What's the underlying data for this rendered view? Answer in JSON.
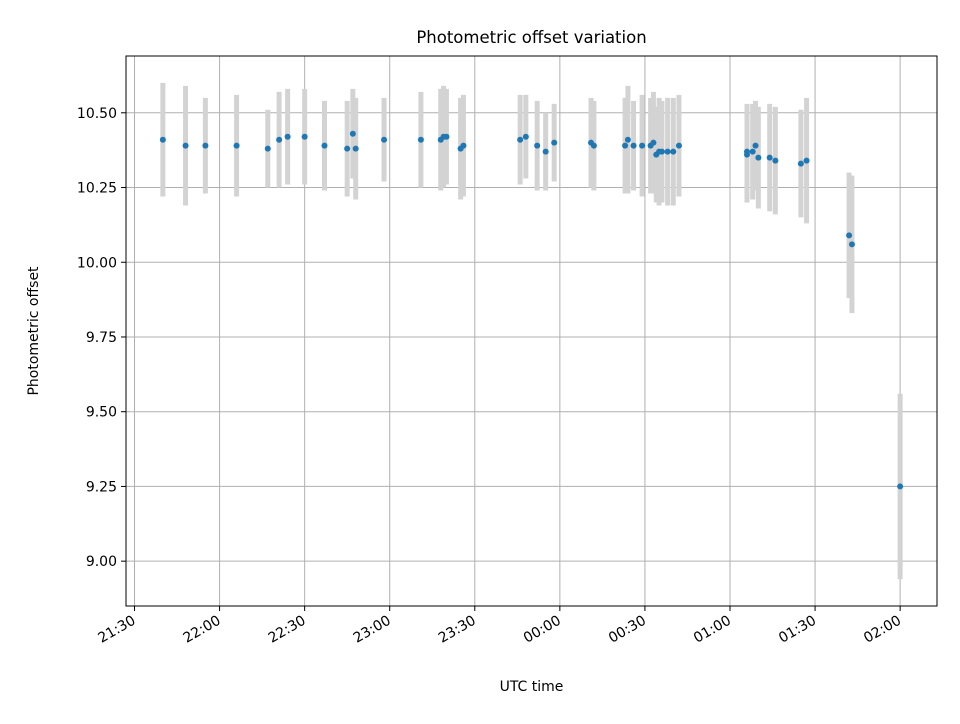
{
  "chart_data": {
    "type": "scatter",
    "title": "Photometric offset variation",
    "xlabel": "UTC time",
    "ylabel": "Photometric offset",
    "xlim": [
      "21:27",
      "02:13"
    ],
    "ylim": [
      8.85,
      10.69
    ],
    "grid": true,
    "legend": "none",
    "x_ticks": [
      "21:30",
      "22:00",
      "22:30",
      "23:00",
      "23:30",
      "00:00",
      "00:30",
      "01:00",
      "01:30",
      "02:00"
    ],
    "y_ticks": [
      "9.00",
      "9.25",
      "9.50",
      "9.75",
      "10.00",
      "10.25",
      "10.50"
    ],
    "colors": {
      "point": "#1f77b4",
      "errorbar": "#d3d3d3",
      "grid": "#b0b0b0"
    },
    "series": [
      {
        "x": [
          "21:40",
          "21:48",
          "21:55",
          "22:06",
          "22:17",
          "22:21",
          "22:24",
          "22:30",
          "22:37",
          "22:45",
          "22:47",
          "22:48",
          "22:58",
          "23:11",
          "23:18",
          "23:19",
          "23:20",
          "23:25",
          "23:26",
          "23:46",
          "23:48",
          "23:52",
          "23:55",
          "23:58",
          "00:11",
          "00:12",
          "00:23",
          "00:24",
          "00:26",
          "00:29",
          "00:32",
          "00:33",
          "00:34",
          "00:35",
          "00:36",
          "00:38",
          "00:40",
          "00:42",
          "01:06",
          "01:06",
          "01:08",
          "01:09",
          "01:10",
          "01:14",
          "01:16",
          "01:25",
          "01:27",
          "01:42",
          "01:43",
          "02:00"
        ],
        "y": [
          10.41,
          10.39,
          10.39,
          10.39,
          10.38,
          10.41,
          10.42,
          10.42,
          10.39,
          10.38,
          10.43,
          10.38,
          10.41,
          10.41,
          10.41,
          10.42,
          10.42,
          10.38,
          10.39,
          10.41,
          10.42,
          10.39,
          10.37,
          10.4,
          10.4,
          10.39,
          10.39,
          10.41,
          10.39,
          10.39,
          10.39,
          10.4,
          10.36,
          10.37,
          10.37,
          10.37,
          10.37,
          10.39,
          10.37,
          10.36,
          10.37,
          10.39,
          10.35,
          10.35,
          10.34,
          10.33,
          10.34,
          10.09,
          10.06,
          9.25
        ],
        "yerr": [
          0.19,
          0.2,
          0.16,
          0.17,
          0.13,
          0.16,
          0.16,
          0.16,
          0.15,
          0.16,
          0.15,
          0.17,
          0.14,
          0.16,
          0.17,
          0.17,
          0.16,
          0.17,
          0.17,
          0.15,
          0.14,
          0.15,
          0.13,
          0.13,
          0.15,
          0.15,
          0.16,
          0.18,
          0.15,
          0.17,
          0.16,
          0.17,
          0.16,
          0.18,
          0.17,
          0.18,
          0.18,
          0.17,
          0.16,
          0.16,
          0.16,
          0.15,
          0.17,
          0.18,
          0.18,
          0.18,
          0.21,
          0.21,
          0.23,
          0.31
        ]
      }
    ]
  }
}
